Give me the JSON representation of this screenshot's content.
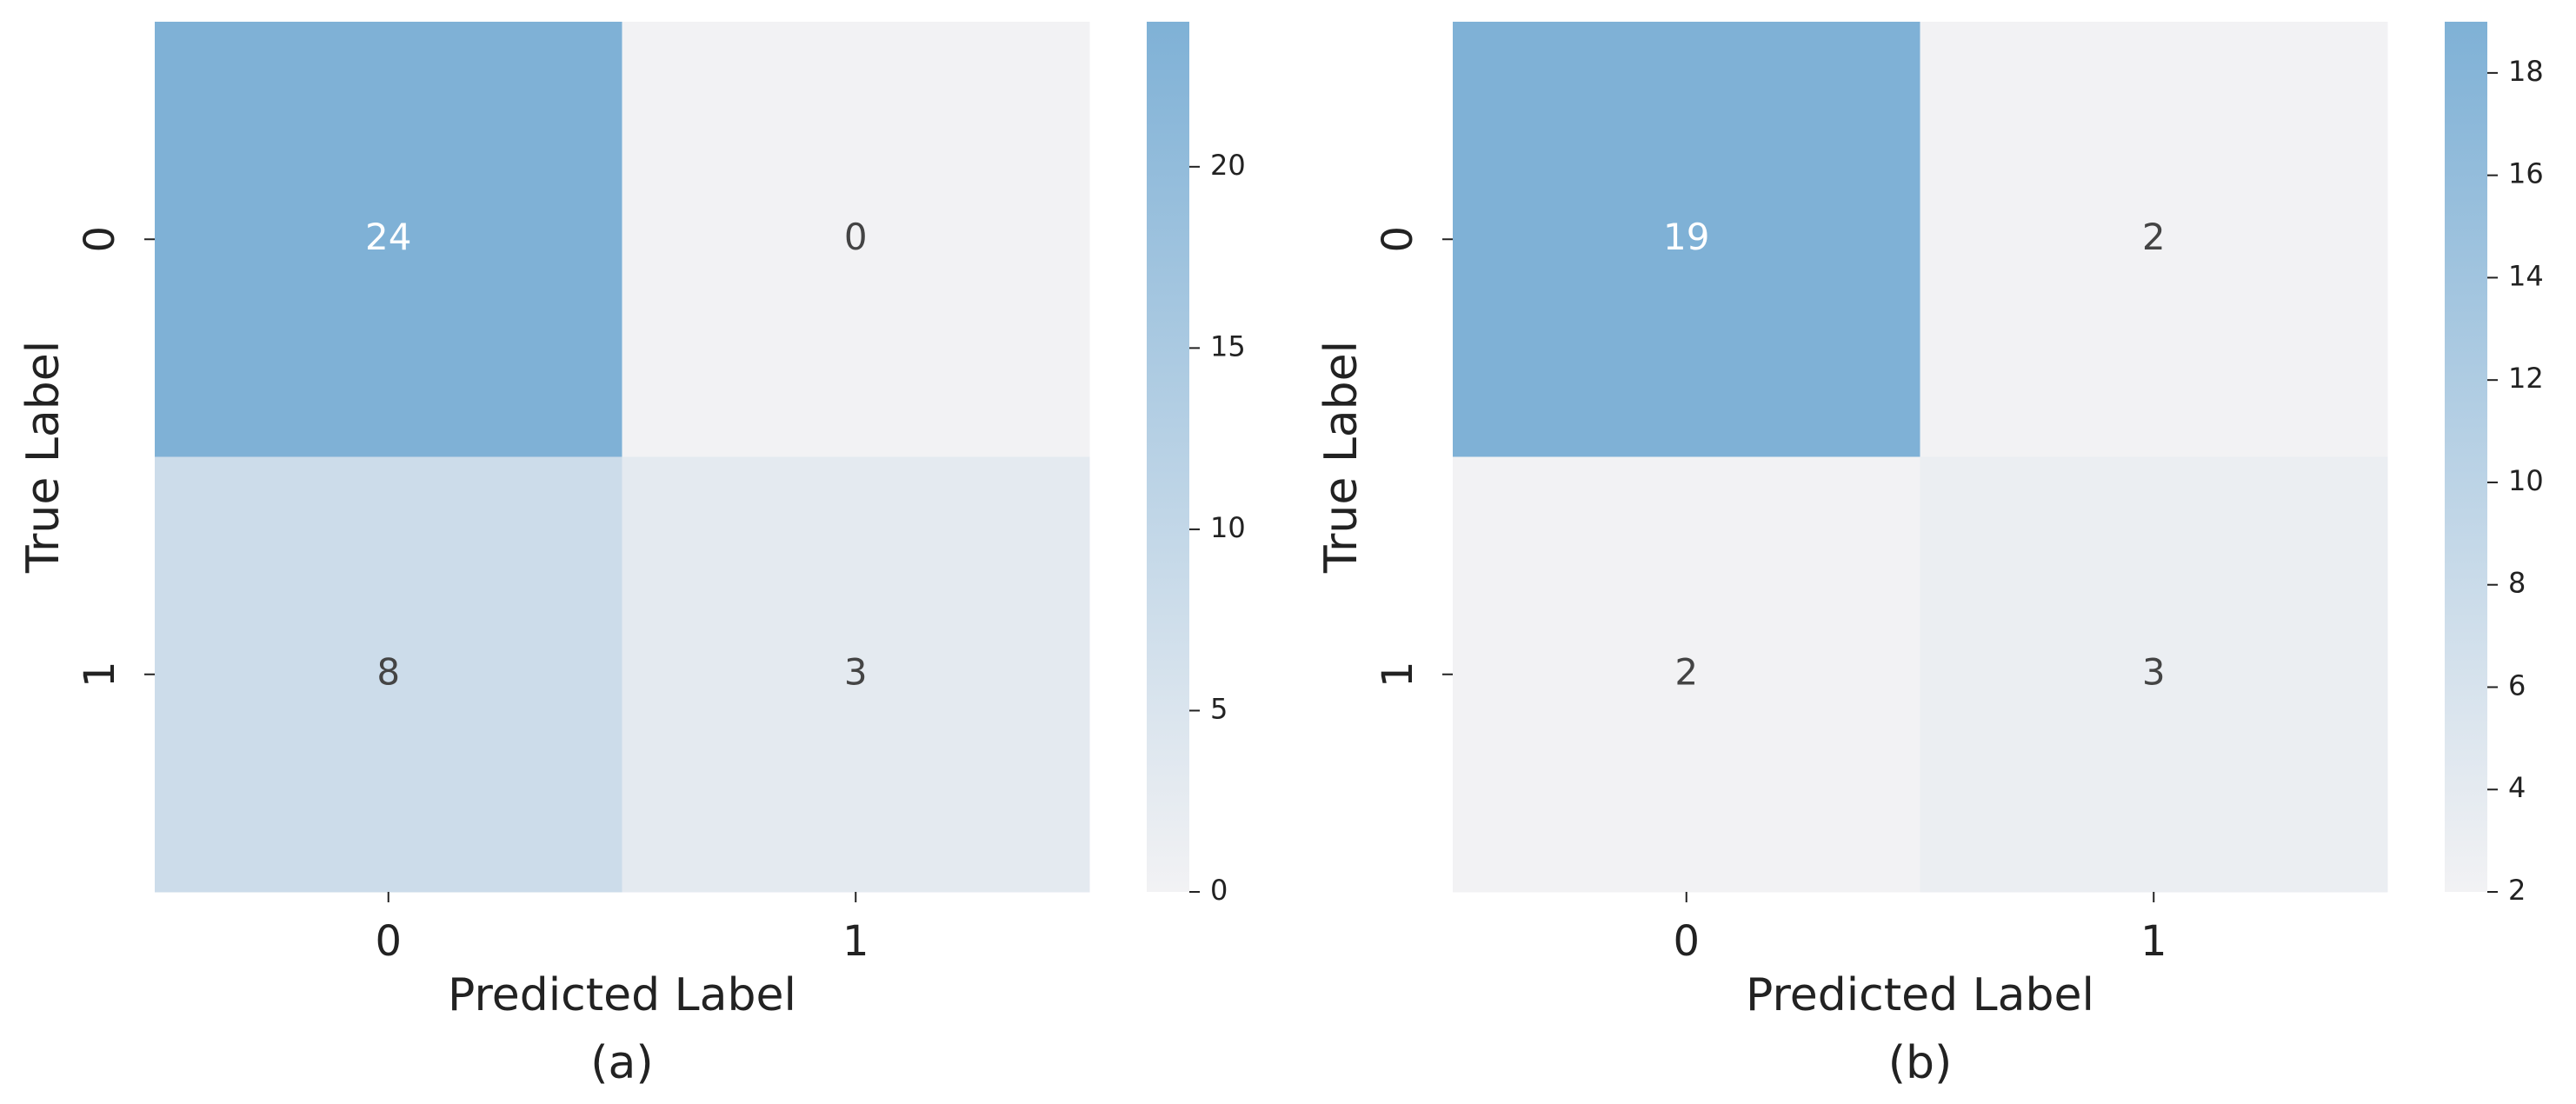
{
  "chart_data": [
    {
      "type": "heatmap",
      "x_categories": [
        "0",
        "1"
      ],
      "y_categories": [
        "0",
        "1"
      ],
      "values": [
        [
          24,
          0
        ],
        [
          8,
          3
        ]
      ],
      "xlabel": "Predicted Label",
      "ylabel": "True Label",
      "caption": "(a)",
      "clim": [
        0,
        24
      ],
      "cticks": [
        0,
        5,
        10,
        15,
        20
      ],
      "cmap": [
        "#f2f2f4",
        "#7fb1d6"
      ]
    },
    {
      "type": "heatmap",
      "x_categories": [
        "0",
        "1"
      ],
      "y_categories": [
        "0",
        "1"
      ],
      "values": [
        [
          19,
          2
        ],
        [
          2,
          3
        ]
      ],
      "xlabel": "Predicted Label",
      "ylabel": "True Label",
      "caption": "(b)",
      "clim": [
        2,
        19
      ],
      "cticks": [
        2,
        4,
        6,
        8,
        10,
        12,
        14,
        16,
        18
      ],
      "cmap": [
        "#f2f2f4",
        "#7fb1d6"
      ]
    }
  ]
}
